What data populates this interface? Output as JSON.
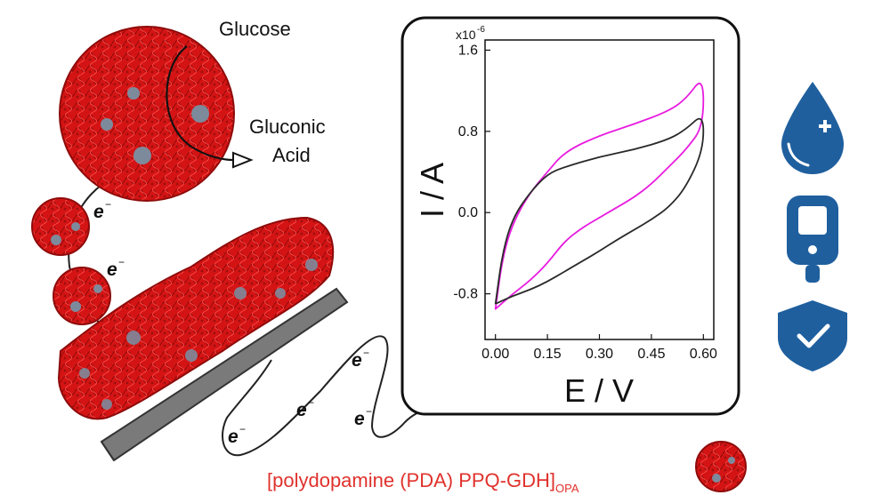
{
  "labels": {
    "glucose": "Glucose",
    "gluconic_line1": "Gluconic",
    "gluconic_line2": "Acid",
    "electron": "e",
    "electron_charge": "−",
    "caption_main": "[polydopamine (PDA) PPQ-GDH]",
    "caption_sub": "OPA"
  },
  "colors": {
    "polymer_red": "#d41414",
    "polymer_dark": "#8e0b0b",
    "enzyme_grey": "#7d8a9c",
    "electrode_grey": "#7a7a7a",
    "caption_red": "#e0322d",
    "icon_blue": "#1f5f9e",
    "cv_magenta": "#e81ce0",
    "cv_black": "#2a2a2a"
  },
  "icons": [
    "blood-drop-plus-icon",
    "glucometer-icon",
    "shield-check-icon"
  ],
  "chart_data": {
    "type": "line",
    "xlabel": "E / V",
    "ylabel": "I / A",
    "y_multiplier": "x10",
    "y_exponent": "-6",
    "xlim": [
      -0.03,
      0.63
    ],
    "ylim": [
      -1.25,
      1.7
    ],
    "x_ticks": [
      "0.00",
      "0.15",
      "0.30",
      "0.45",
      "0.60"
    ],
    "y_ticks": [
      "1.6",
      "0.8",
      "0.0",
      "-0.8"
    ],
    "x_tick_values": [
      0.0,
      0.15,
      0.3,
      0.45,
      0.6
    ],
    "y_tick_values": [
      1.6,
      0.8,
      0.0,
      -0.8
    ],
    "series": [
      {
        "color": "#e81ce0",
        "x": [
          0.0,
          0.02,
          0.05,
          0.1,
          0.15,
          0.2,
          0.3,
          0.4,
          0.5,
          0.55,
          0.6,
          0.6,
          0.55,
          0.5,
          0.45,
          0.4,
          0.35,
          0.3,
          0.25,
          0.2,
          0.15,
          0.1,
          0.05,
          0.0
        ],
        "y": [
          -0.95,
          -0.45,
          -0.1,
          0.2,
          0.4,
          0.6,
          0.76,
          0.87,
          1.0,
          1.12,
          1.35,
          0.85,
          0.62,
          0.45,
          0.28,
          0.15,
          0.05,
          -0.05,
          -0.15,
          -0.28,
          -0.5,
          -0.67,
          -0.8,
          -0.95
        ]
      },
      {
        "color": "#2a2a2a",
        "x": [
          0.0,
          0.02,
          0.05,
          0.1,
          0.15,
          0.2,
          0.3,
          0.4,
          0.5,
          0.55,
          0.6,
          0.6,
          0.55,
          0.5,
          0.45,
          0.4,
          0.35,
          0.3,
          0.25,
          0.2,
          0.15,
          0.1,
          0.05,
          0.0
        ],
        "y": [
          -0.9,
          -0.4,
          -0.05,
          0.2,
          0.38,
          0.45,
          0.55,
          0.62,
          0.72,
          0.82,
          0.98,
          0.62,
          0.25,
          0.05,
          -0.07,
          -0.17,
          -0.27,
          -0.38,
          -0.48,
          -0.58,
          -0.68,
          -0.76,
          -0.82,
          -0.9
        ]
      }
    ]
  }
}
